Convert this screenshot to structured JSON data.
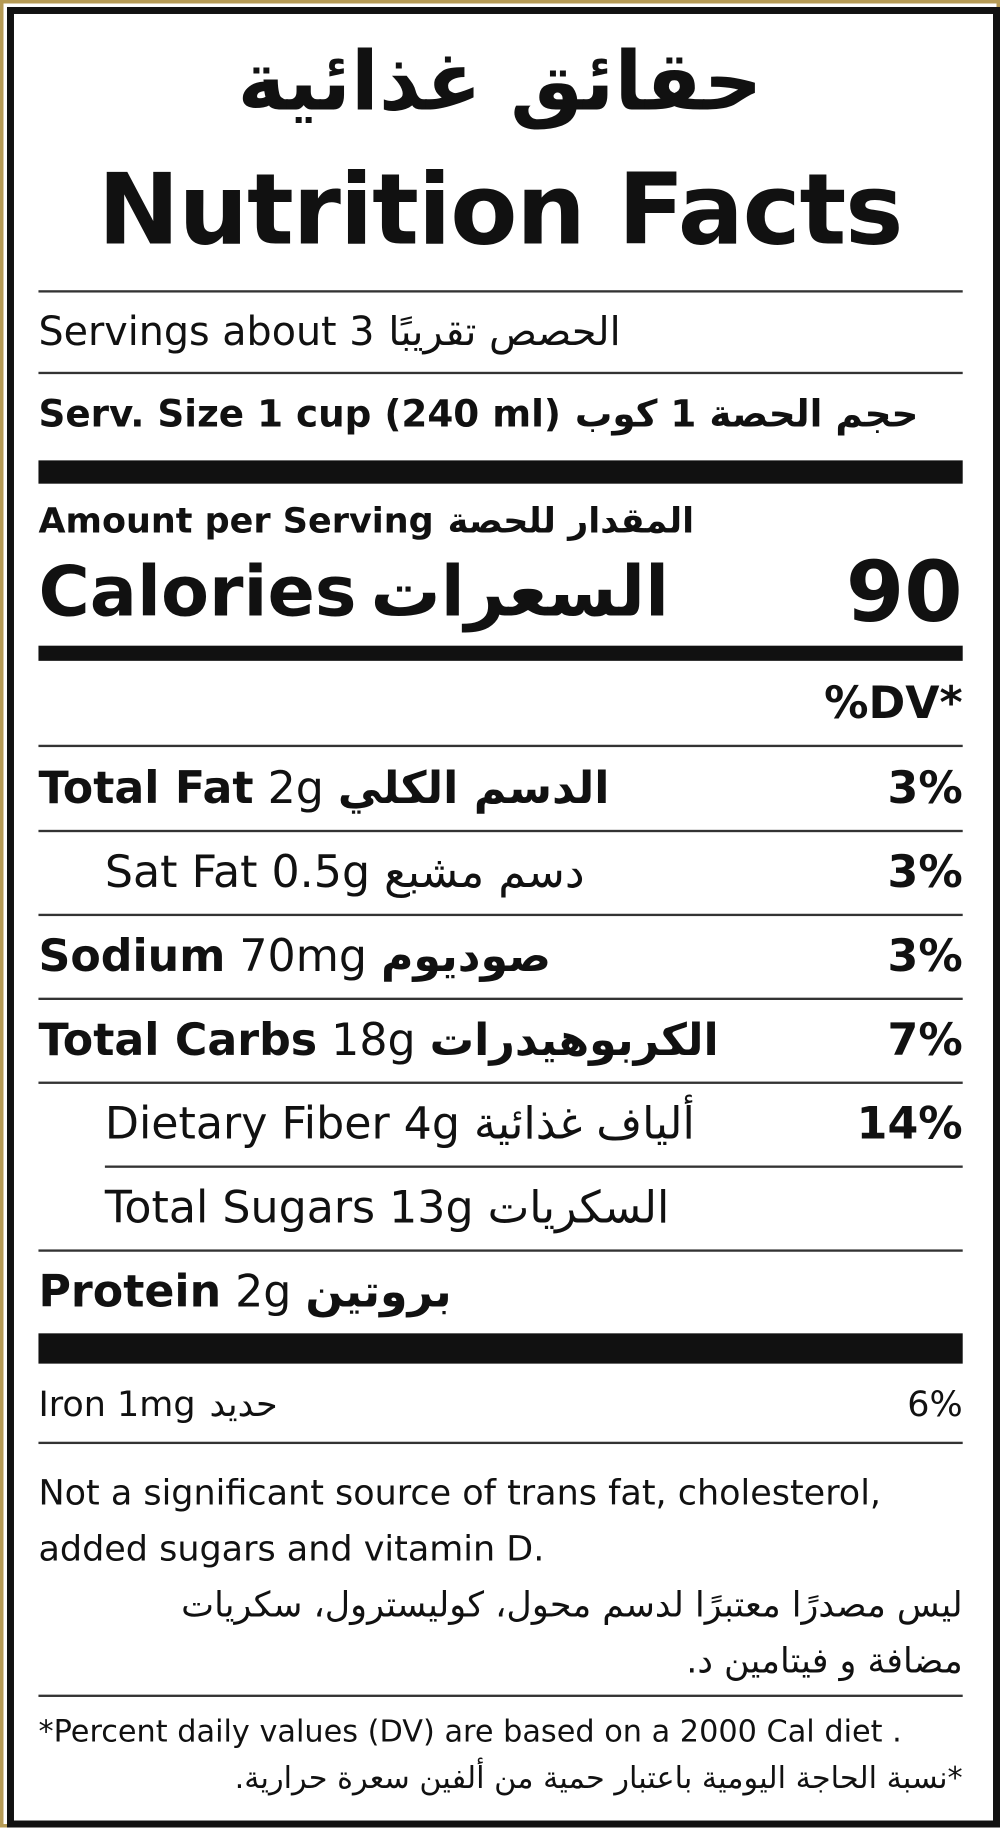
{
  "header": {
    "title_ar": "حقائق غذائية",
    "title_en": "Nutrition Facts"
  },
  "servings": {
    "en": "Servings about 3",
    "ar": "الحصص تقريبًا"
  },
  "serving_size": {
    "en": "Serv. Size 1 cup (240 ml)",
    "ar": "حجم الحصة 1 كوب"
  },
  "amount_per_serving": {
    "en": "Amount per Serving",
    "ar": "المقدار للحصة"
  },
  "calories": {
    "en": "Calories",
    "ar": "السعرات",
    "value": 90
  },
  "dv_header": "%DV*",
  "nutrients": [
    {
      "name": "Total Fat",
      "amount": "2g",
      "ar": "الدسم الكلي",
      "dv": "3%",
      "indent": false
    },
    {
      "name": "Sat Fat",
      "amount": "0.5g",
      "ar": "دسم مشبع",
      "dv": "3%",
      "indent": true
    },
    {
      "name": "Sodium",
      "amount": "70mg",
      "ar": "صوديوم",
      "dv": "3%",
      "indent": false
    },
    {
      "name": "Total Carbs",
      "amount": "18g",
      "ar": "الكربوهيدرات",
      "dv": "7%",
      "indent": false
    },
    {
      "name": "Dietary Fiber",
      "amount": "4g",
      "ar": "ألياف غذائية",
      "dv": "14%",
      "indent": true
    },
    {
      "name": "Total Sugars",
      "amount": "13g",
      "ar": "السكريات",
      "indent": true
    },
    {
      "name": "Protein",
      "amount": "2g",
      "ar": "بروتين",
      "indent": false
    }
  ],
  "iron": {
    "en": "Iron 1mg",
    "ar": "حديد",
    "dv": "6%"
  },
  "note": {
    "en": [
      "Not a significant source of trans fat, cholesterol,",
      "added sugars and vitamin D."
    ],
    "ar": [
      "ليس مصدرًا معتبرًا لدسم محول، كوليسترول، سكريات",
      "مضافة و فيتامين د."
    ]
  },
  "footnote": {
    "en": "*Percent daily values (DV)  are based on a 2000 Cal diet .",
    "ar": "*نسبة الحاجة اليومية باعتبار حمية من ألفين سعرة حرارية."
  }
}
